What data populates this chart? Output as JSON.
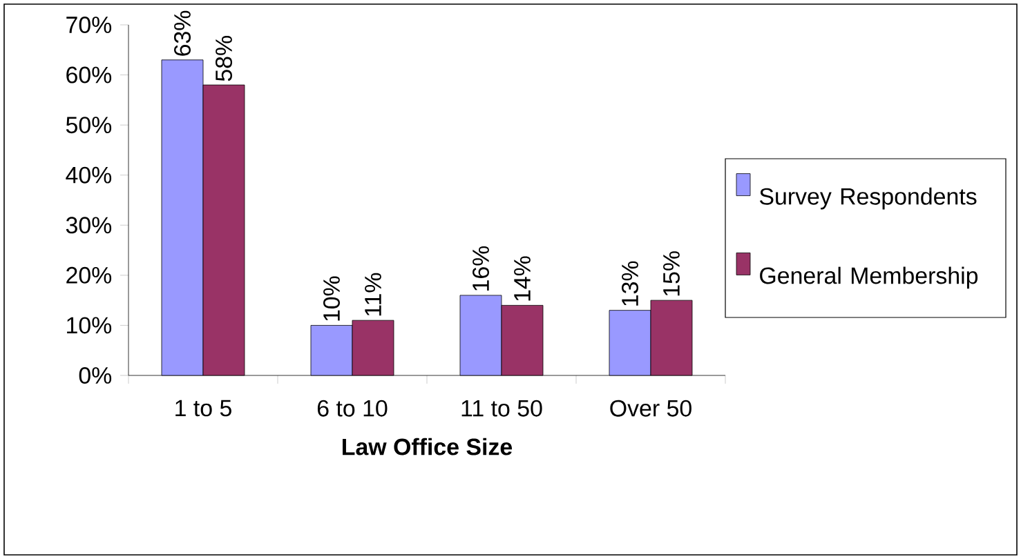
{
  "chart_data": {
    "type": "bar",
    "xlabel": "Law Office Size",
    "categories": [
      "1 to 5",
      "6 to 10",
      "11 to 50",
      "Over 50"
    ],
    "series": [
      {
        "name": "Survey Respondents",
        "color": "#9999ff",
        "values": [
          63,
          10,
          16,
          13
        ],
        "value_labels": [
          "63%",
          "10%",
          "16%",
          "13%"
        ]
      },
      {
        "name": "General Membership",
        "color": "#993366",
        "values": [
          58,
          11,
          14,
          15
        ],
        "value_labels": [
          "58%",
          "11%",
          "14%",
          "15%"
        ]
      }
    ],
    "ylim": [
      0,
      70
    ],
    "yticks": [
      {
        "value": 0,
        "label": "0%"
      },
      {
        "value": 10,
        "label": "10%"
      },
      {
        "value": 20,
        "label": "20%"
      },
      {
        "value": 30,
        "label": "30%"
      },
      {
        "value": 40,
        "label": "40%"
      },
      {
        "value": 50,
        "label": "50%"
      },
      {
        "value": 60,
        "label": "60%"
      },
      {
        "value": 70,
        "label": "70%"
      }
    ],
    "legend": "right"
  }
}
